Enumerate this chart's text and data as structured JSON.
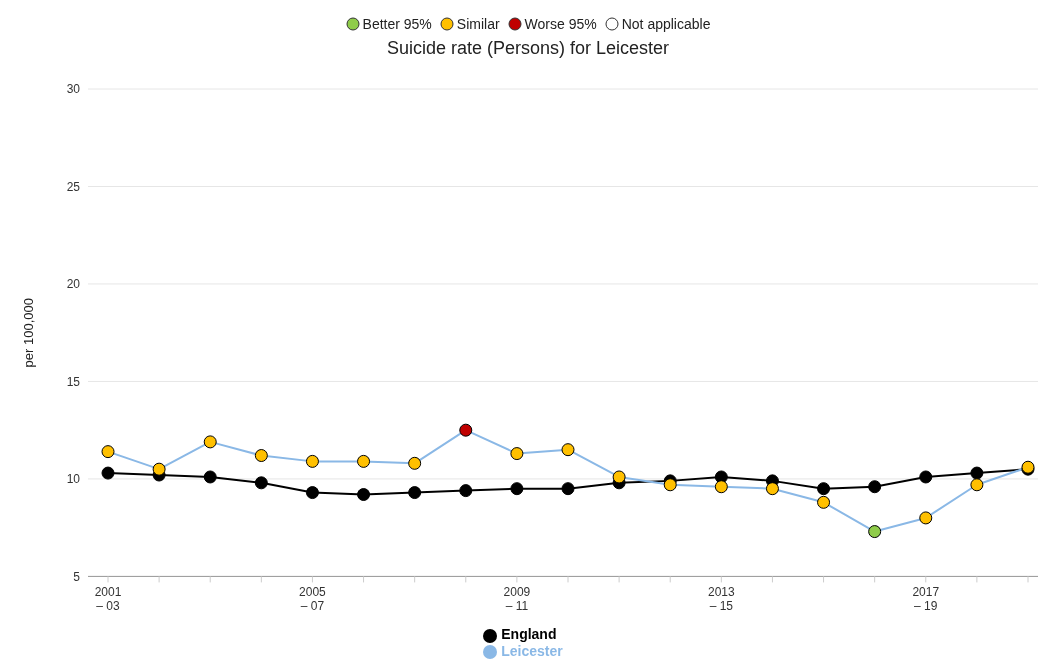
{
  "chart_data": {
    "type": "line",
    "title": "Suicide rate (Persons) for Leicester",
    "ylabel": "per 100,000",
    "categories": [
      "2001\n– 03",
      null,
      null,
      null,
      "2005\n– 07",
      null,
      null,
      null,
      "2009\n– 11",
      null,
      null,
      null,
      "2013\n– 15",
      null,
      null,
      null,
      "2017\n– 19",
      null,
      null
    ],
    "series": [
      {
        "name": "Better 95%",
        "type": "scatter",
        "color": "#8fcc4a",
        "values": [
          null,
          null,
          null,
          null,
          null,
          null,
          null,
          null,
          null,
          null,
          null,
          null,
          null,
          null,
          null,
          null,
          null,
          null,
          null
        ]
      },
      {
        "name": "Similar",
        "type": "scatter",
        "color": "#ffc000",
        "values": [
          null,
          null,
          null,
          null,
          null,
          null,
          null,
          null,
          null,
          null,
          null,
          null,
          null,
          null,
          null,
          null,
          null,
          null,
          null
        ]
      },
      {
        "name": "Worse 95%",
        "type": "scatter",
        "color": "#c00000",
        "values": [
          null,
          null,
          null,
          null,
          null,
          null,
          null,
          null,
          null,
          null,
          null,
          null,
          null,
          null,
          null,
          null,
          null,
          null,
          null
        ]
      },
      {
        "name": "Not applicable",
        "type": "scatter",
        "color": "#ffffff",
        "values": [
          null,
          null,
          null,
          null,
          null,
          null,
          null,
          null,
          null,
          null,
          null,
          null,
          null,
          null,
          null,
          null,
          null,
          null,
          null
        ]
      },
      {
        "name": "England",
        "color": "#000000",
        "values": [
          10.3,
          10.2,
          10.1,
          9.8,
          9.3,
          9.2,
          9.3,
          9.4,
          9.5,
          9.5,
          9.8,
          9.9,
          10.1,
          9.9,
          9.5,
          9.6,
          10.1,
          10.3,
          10.5
        ]
      },
      {
        "name": "Leicester",
        "color": "#8ab8e6",
        "colors": [
          "#ffc000",
          "#ffc000",
          "#ffc000",
          "#ffc000",
          "#ffc000",
          "#ffc000",
          "#ffc000",
          "#c00000",
          "#ffc000",
          "#ffc000",
          "#ffc000",
          "#ffc000",
          "#ffc000",
          "#ffc000",
          "#ffc000",
          "#8fcc4a",
          "#ffc000",
          "#ffc000",
          "#ffc000"
        ],
        "values": [
          11.4,
          10.5,
          11.9,
          11.2,
          10.9,
          10.9,
          10.8,
          12.5,
          11.3,
          11.5,
          10.1,
          9.7,
          9.6,
          9.5,
          8.8,
          7.3,
          8.0,
          9.7,
          10.6
        ]
      }
    ],
    "ylim": [
      5,
      30
    ],
    "yticks": [
      5,
      10,
      15,
      20,
      25,
      30
    ],
    "grid": "y",
    "legend": "bottom",
    "marker": "circle",
    "line_style": "solid"
  }
}
